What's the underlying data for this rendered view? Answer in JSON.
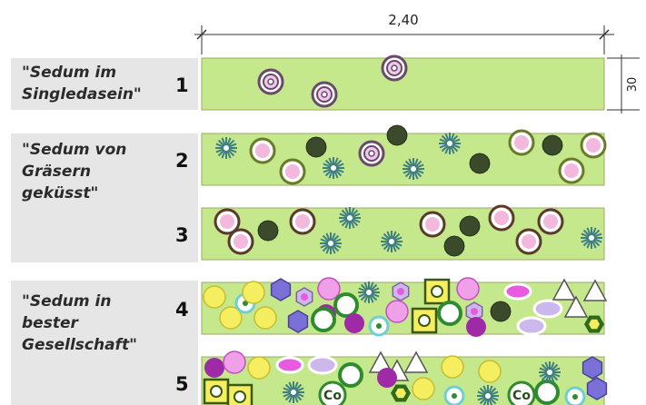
{
  "dimensions": {
    "width_label": "2,40",
    "height_label": "30"
  },
  "groups": [
    {
      "lines": [
        "\"Sedum im",
        "Singledasein\""
      ]
    },
    {
      "lines": [
        "\"Sedum von",
        "Gräsern",
        "geküsst\""
      ]
    },
    {
      "lines": [
        "\"Sedum in",
        "bester",
        "Gesellschaft\""
      ]
    }
  ],
  "rows": [
    {
      "number": "1"
    },
    {
      "number": "2"
    },
    {
      "number": "3"
    },
    {
      "number": "4"
    },
    {
      "number": "5"
    }
  ],
  "colors": {
    "bed_fill": "#c6e88c",
    "bed_stroke": "#9aaa6a",
    "label_bg": "#e6e6e6",
    "sedum_ring": "#6a4a6a",
    "sedum_center": "#f0c8ec",
    "grass_teal": "#3f7f82",
    "grass_dark": "#3a4a2a",
    "pink_ring": "#6b7a2a",
    "pink_center": "#f4b8dc",
    "green_ring": "#2e8b2e",
    "purple": "#9e2aa8",
    "violet": "#7b6fd8",
    "yellow": "#f5ee60",
    "magenta": "#e85ae0",
    "lavender": "#cdb8ee",
    "cyan_ring": "#6ecfd4"
  },
  "plant_code": "Co"
}
